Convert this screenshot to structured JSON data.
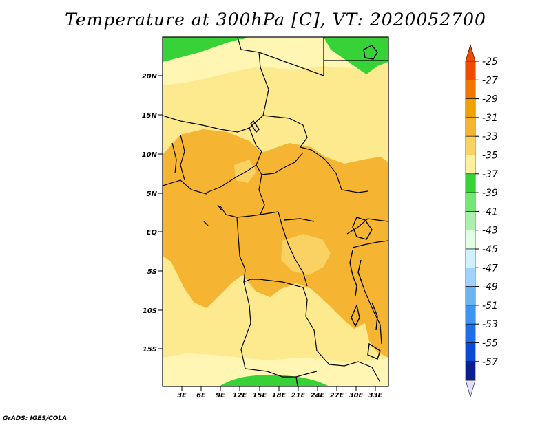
{
  "title": "Temperature at 300hPa [C], VT: 2020052700",
  "credit": "GrADS: IGES/COLA",
  "lat_labels": [
    "20N",
    "15N",
    "10N",
    "5N",
    "EQ",
    "5S",
    "10S",
    "15S"
  ],
  "lon_labels": [
    "3E",
    "6E",
    "9E",
    "12E",
    "15E",
    "18E",
    "21E",
    "24E",
    "27E",
    "30E",
    "33E"
  ],
  "colorbar": {
    "labels": [
      "-25",
      "-27",
      "-29",
      "-31",
      "-33",
      "-35",
      "-37",
      "-39",
      "-41",
      "-43",
      "-45",
      "-47",
      "-49",
      "-51",
      "-53",
      "-55",
      "-57"
    ],
    "colors": [
      "#f04a00",
      "#f07800",
      "#f0a000",
      "#f5b432",
      "#fad264",
      "#fff0a0",
      "#37d237",
      "#73e673",
      "#aaf0aa",
      "#e1ffe1",
      "#d0f0ff",
      "#a0d2ff",
      "#6ab4f0",
      "#3c96f0",
      "#1e6ee6",
      "#0a4bd2",
      "#0a1e8c"
    ],
    "top_color": "#f04a00",
    "bottom_color": "#e1e1ff"
  },
  "colors": {
    "c27_29": "#f5b432",
    "c29_31": "#fad264",
    "c31_33": "#fde98e",
    "c33_35": "#fff6b4",
    "c35_37": "#37d237",
    "border": "#000000"
  }
}
